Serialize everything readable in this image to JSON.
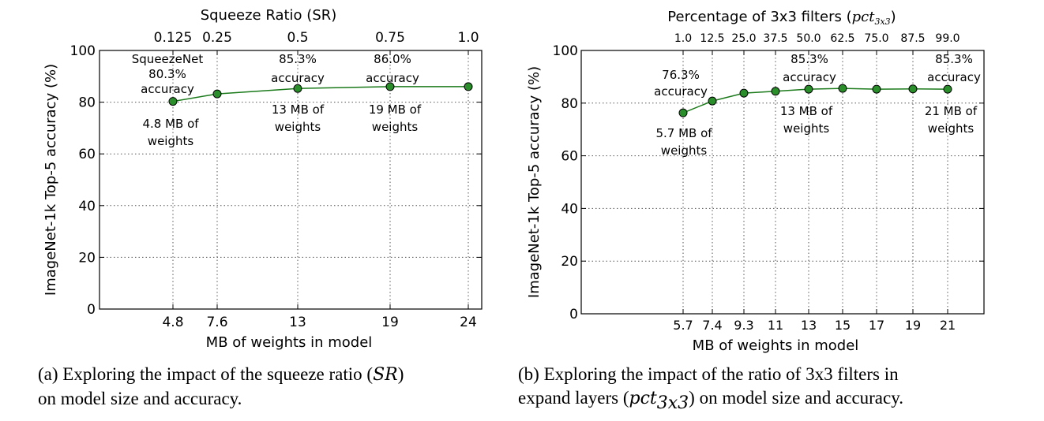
{
  "chart_data": [
    {
      "type": "line",
      "series_color": "#1a7a1a",
      "marker_color": "#2a8f2a",
      "x": [
        4.8,
        7.6,
        13,
        19,
        24
      ],
      "values": [
        80.3,
        83.2,
        85.3,
        86.0,
        86.0
      ],
      "xlabel": "MB of weights in model",
      "ylabel": "ImageNet-1k Top-5 accuracy (%)",
      "top_axis_label": "Squeeze Ratio (SR)",
      "bottom_ticks": [
        "4.8",
        "7.6",
        "13",
        "19",
        "24"
      ],
      "top_ticks": [
        "0.125",
        "0.25",
        "0.5",
        "0.75",
        "1.0"
      ],
      "y_ticks": [
        "0",
        "20",
        "40",
        "60",
        "80",
        "100"
      ],
      "ylim": [
        0,
        100
      ],
      "grid": true,
      "annotations": [
        {
          "lines": [
            "SqueezeNet",
            "80.3%",
            "accuracy"
          ]
        },
        {
          "lines": [
            "4.8 MB of",
            "weights"
          ]
        },
        {
          "lines": [
            "85.3%",
            "accuracy"
          ]
        },
        {
          "lines": [
            "13 MB of",
            "weights"
          ]
        },
        {
          "lines": [
            "86.0%",
            "accuracy"
          ]
        },
        {
          "lines": [
            "19 MB of",
            "weights"
          ]
        }
      ],
      "caption": {
        "tag": "(a)",
        "text_before": "Exploring the impact of the squeeze ratio (",
        "math": "SR",
        "text_after": ")",
        "line2": "on model size and accuracy."
      }
    },
    {
      "type": "line",
      "series_color": "#1a7a1a",
      "marker_color": "#2a8f2a",
      "x": [
        5.7,
        7.4,
        9.3,
        11,
        13,
        15,
        17,
        19,
        21
      ],
      "values": [
        76.3,
        80.8,
        83.8,
        84.5,
        85.3,
        85.6,
        85.3,
        85.4,
        85.3
      ],
      "xlabel": "MB of weights in model",
      "ylabel": "ImageNet-1k Top-5 accuracy (%)",
      "top_axis_label_text": "Percentage of 3x3 filters (",
      "top_axis_label_math": "pct",
      "top_axis_label_sub": "3x3",
      "top_axis_label_close": ")",
      "bottom_ticks": [
        "5.7",
        "7.4",
        "9.3",
        "11",
        "13",
        "15",
        "17",
        "19",
        "21"
      ],
      "top_ticks": [
        "1.0",
        "12.5",
        "25.0",
        "37.5",
        "50.0",
        "62.5",
        "75.0",
        "87.5",
        "99.0"
      ],
      "y_ticks": [
        "0",
        "20",
        "40",
        "60",
        "80",
        "100"
      ],
      "ylim": [
        0,
        100
      ],
      "grid": true,
      "annotations": [
        {
          "lines": [
            "76.3%",
            "accuracy"
          ]
        },
        {
          "lines": [
            "5.7 MB of",
            "weights"
          ]
        },
        {
          "lines": [
            "85.3%",
            "accuracy"
          ]
        },
        {
          "lines": [
            "13 MB of",
            "weights"
          ]
        },
        {
          "lines": [
            "85.3%",
            "accuracy"
          ]
        },
        {
          "lines": [
            "21 MB of",
            "weights"
          ]
        }
      ],
      "caption": {
        "tag": "(b)",
        "text_before": "Exploring the impact of the ratio of 3x3 filters in",
        "line2_before": "expand layers (",
        "math": "pct",
        "math_sub": "3x3",
        "line2_after": ") on model size and accuracy."
      }
    }
  ]
}
